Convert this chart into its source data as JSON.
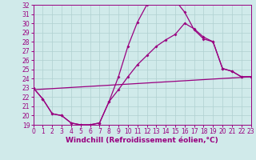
{
  "xlabel": "Windchill (Refroidissement éolien,°C)",
  "xlim": [
    0,
    23
  ],
  "ylim": [
    19,
    32
  ],
  "xticks": [
    0,
    1,
    2,
    3,
    4,
    5,
    6,
    7,
    8,
    9,
    10,
    11,
    12,
    13,
    14,
    15,
    16,
    17,
    18,
    19,
    20,
    21,
    22,
    23
  ],
  "yticks": [
    19,
    20,
    21,
    22,
    23,
    24,
    25,
    26,
    27,
    28,
    29,
    30,
    31,
    32
  ],
  "bg_color": "#d0eaea",
  "grid_color": "#b0d0d0",
  "line_color": "#990080",
  "curve1_x": [
    0,
    1,
    2,
    3,
    4,
    5,
    6,
    7,
    8,
    9,
    10,
    11,
    12,
    13,
    14,
    15,
    16,
    17,
    18,
    19,
    20,
    21,
    22,
    23
  ],
  "curve1_y": [
    23.0,
    21.8,
    20.2,
    20.0,
    19.2,
    19.0,
    19.0,
    19.2,
    21.5,
    24.2,
    27.5,
    30.1,
    32.0,
    32.3,
    32.3,
    32.5,
    31.2,
    29.3,
    28.3,
    28.0,
    25.1,
    24.8,
    24.2,
    24.2
  ],
  "curve2_x": [
    0,
    1,
    2,
    3,
    4,
    5,
    6,
    7,
    8,
    9,
    10,
    11,
    12,
    13,
    14,
    15,
    16,
    17,
    18,
    19,
    20,
    21,
    22,
    23
  ],
  "curve2_y": [
    23.0,
    21.8,
    20.2,
    20.0,
    19.2,
    19.0,
    19.0,
    19.2,
    21.5,
    22.8,
    24.2,
    25.5,
    26.5,
    27.5,
    28.2,
    28.8,
    30.0,
    29.4,
    28.5,
    28.0,
    25.1,
    24.8,
    24.2,
    24.2
  ],
  "line3_x": [
    0,
    23
  ],
  "line3_y": [
    22.8,
    24.2
  ],
  "tick_fs": 5.5,
  "label_fs": 6.5
}
